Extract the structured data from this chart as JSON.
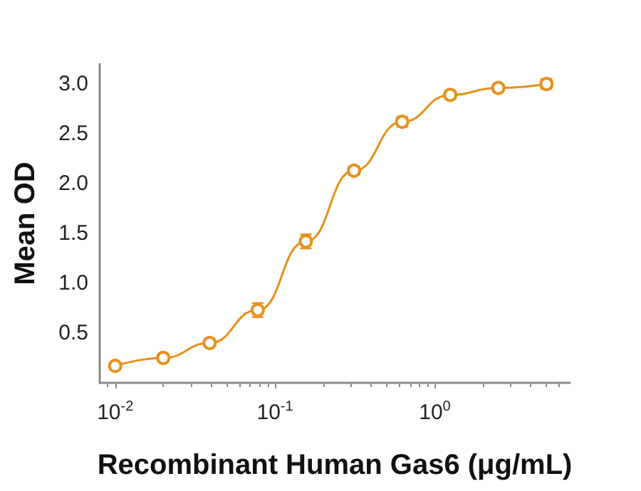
{
  "chart_data": {
    "type": "line",
    "xlabel": "Recombinant Human Gas6 (μg/mL)",
    "ylabel": "Mean OD",
    "log": "x",
    "grid": false,
    "marker": "circle",
    "line_style": "solid",
    "xlim": [
      0.008,
      7
    ],
    "xticks": [
      {
        "value": 0.01,
        "label": "10$^{-2}$"
      },
      {
        "value": 0.1,
        "label": "10$^{-1}$"
      },
      {
        "value": 1,
        "label": "10$^{0}$"
      }
    ],
    "ylim": [
      0,
      3.2
    ],
    "yticks": [
      {
        "value": 0.5,
        "label": "0.5"
      },
      {
        "value": 1,
        "label": "1.0"
      },
      {
        "value": 1.5,
        "label": "1.5"
      },
      {
        "value": 2,
        "label": "2.0"
      },
      {
        "value": 2.5,
        "label": "2.5"
      },
      {
        "value": 3,
        "label": "3.0"
      }
    ],
    "series": [
      {
        "color": "#e8901a",
        "x": [
          0.01,
          0.02,
          0.039,
          0.078,
          0.156,
          0.3125,
          0.625,
          1.25,
          2.5,
          5
        ],
        "values": [
          0.17,
          0.25,
          0.4,
          0.73,
          1.42,
          2.13,
          2.62,
          2.89,
          2.96,
          3.0
        ],
        "errors": [
          0.02,
          0.02,
          0.02,
          0.07,
          0.07,
          0.04,
          0.05,
          0.02,
          0.02,
          0.05
        ]
      }
    ]
  }
}
